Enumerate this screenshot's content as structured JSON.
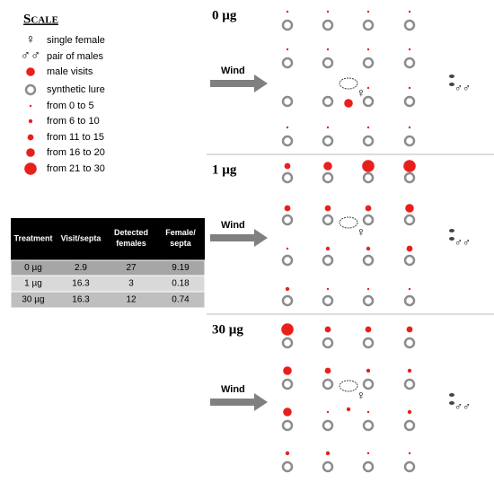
{
  "scale": {
    "title": "Scale",
    "items": [
      {
        "symbol": "♀",
        "label": "single female"
      },
      {
        "symbol": "♂♂",
        "label": "pair of males"
      },
      {
        "label": "male visits"
      },
      {
        "label": "synthetic lure"
      },
      {
        "label": "from 0 to 5"
      },
      {
        "label": "from 6 to 10"
      },
      {
        "label": "from 11 to 15"
      },
      {
        "label": "from 16 to 20"
      },
      {
        "label": "from 21 to 30"
      }
    ]
  },
  "table": {
    "header": [
      "Treatment",
      "Visit/septa",
      "Detected females",
      "Female/ septa"
    ],
    "rows": [
      [
        "0 µg",
        "2.9",
        "27",
        "9.19"
      ],
      [
        "1 µg",
        "16.3",
        "3",
        "0.18"
      ],
      [
        "30 µg",
        "16.3",
        "12",
        "0.74"
      ]
    ]
  },
  "panels": [
    {
      "label": "0 µg",
      "wind": "Wind"
    },
    {
      "label": "1 µg",
      "wind": "Wind"
    },
    {
      "label": "30 µg",
      "wind": "Wind"
    }
  ]
}
